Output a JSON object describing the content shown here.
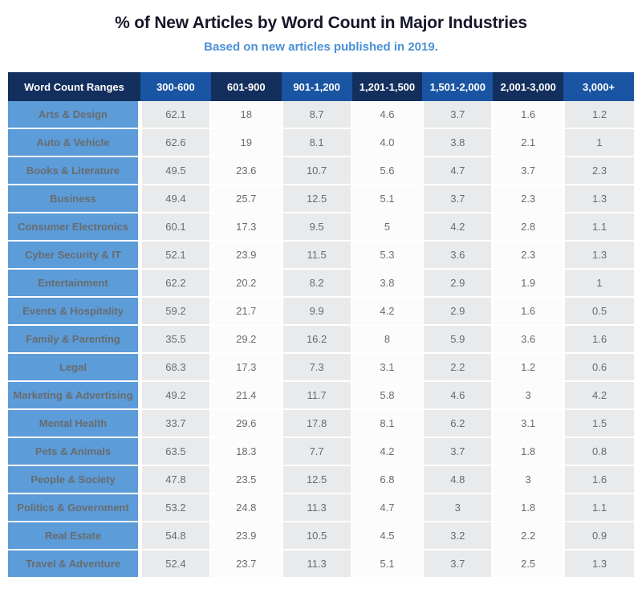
{
  "page": {
    "title": "% of New Articles by Word Count in Major Industries",
    "subtitle": "Based on new articles published in 2019."
  },
  "colors": {
    "header_navy": "#132f5d",
    "header_blue": "#1a55a3",
    "row_label_blue": "#5c9cd9",
    "cell_gray": "#e9eaeb",
    "cell_white": "#fcfcfd",
    "title_color": "#17172b",
    "subtitle_blue": "#4a90d8",
    "value_text_gray": "#686c6f",
    "header_text": "#ffffff"
  },
  "chart_data": {
    "type": "table",
    "title": "% of New Articles by Word Count in Major Industries",
    "subtitle": "Based on new articles published in 2019.",
    "columns": [
      "Word Count Ranges",
      "300-600",
      "601-900",
      "901-1,200",
      "1,201-1,500",
      "1,501-2,000",
      "2,001-3,000",
      "3,000+"
    ],
    "rows": [
      {
        "industry": "Arts & Design",
        "values": [
          "62.1",
          "18",
          "8.7",
          "4.6",
          "3.7",
          "1.6",
          "1.2"
        ]
      },
      {
        "industry": "Auto & Vehicle",
        "values": [
          "62.6",
          "19",
          "8.1",
          "4.0",
          "3.8",
          "2.1",
          "1"
        ]
      },
      {
        "industry": "Books & Literature",
        "values": [
          "49.5",
          "23.6",
          "10.7",
          "5.6",
          "4.7",
          "3.7",
          "2.3"
        ]
      },
      {
        "industry": "Business",
        "values": [
          "49.4",
          "25.7",
          "12.5",
          "5.1",
          "3.7",
          "2.3",
          "1.3"
        ]
      },
      {
        "industry": "Consumer Electronics",
        "values": [
          "60.1",
          "17.3",
          "9.5",
          "5",
          "4.2",
          "2.8",
          "1.1"
        ]
      },
      {
        "industry": "Cyber Security & IT",
        "values": [
          "52.1",
          "23.9",
          "11.5",
          "5.3",
          "3.6",
          "2.3",
          "1.3"
        ]
      },
      {
        "industry": "Entertainment",
        "values": [
          "62.2",
          "20.2",
          "8.2",
          "3.8",
          "2.9",
          "1.9",
          "1"
        ]
      },
      {
        "industry": "Events & Hospitality",
        "values": [
          "59.2",
          "21.7",
          "9.9",
          "4.2",
          "2.9",
          "1.6",
          "0.5"
        ]
      },
      {
        "industry": "Family & Parenting",
        "values": [
          "35.5",
          "29.2",
          "16.2",
          "8",
          "5.9",
          "3.6",
          "1.6"
        ]
      },
      {
        "industry": "Legal",
        "values": [
          "68.3",
          "17.3",
          "7.3",
          "3.1",
          "2.2",
          "1.2",
          "0.6"
        ]
      },
      {
        "industry": "Marketing & Advertising",
        "values": [
          "49.2",
          "21.4",
          "11.7",
          "5.8",
          "4.6",
          "3",
          "4.2"
        ]
      },
      {
        "industry": "Mental Health",
        "values": [
          "33.7",
          "29.6",
          "17.8",
          "8.1",
          "6.2",
          "3.1",
          "1.5"
        ]
      },
      {
        "industry": "Pets & Animals",
        "values": [
          "63.5",
          "18.3",
          "7.7",
          "4.2",
          "3.7",
          "1.8",
          "0.8"
        ]
      },
      {
        "industry": "People & Society",
        "values": [
          "47.8",
          "23.5",
          "12.5",
          "6.8",
          "4.8",
          "3",
          "1.6"
        ]
      },
      {
        "industry": "Politics & Government",
        "values": [
          "53.2",
          "24.8",
          "11.3",
          "4.7",
          "3",
          "1.8",
          "1.1"
        ]
      },
      {
        "industry": "Real Estate",
        "values": [
          "54.8",
          "23.9",
          "10.5",
          "4.5",
          "3.2",
          "2.2",
          "0.9"
        ]
      },
      {
        "industry": "Travel & Adventure",
        "values": [
          "52.4",
          "23.7",
          "11.3",
          "5.1",
          "3.7",
          "2.5",
          "1.3"
        ]
      }
    ],
    "layout": {
      "header_color_alternation": "dark/blue starting dark at first column",
      "body_value_column_striping": "gray/white starting gray at first value column",
      "legend": "none",
      "grid": "white cell separators"
    }
  }
}
